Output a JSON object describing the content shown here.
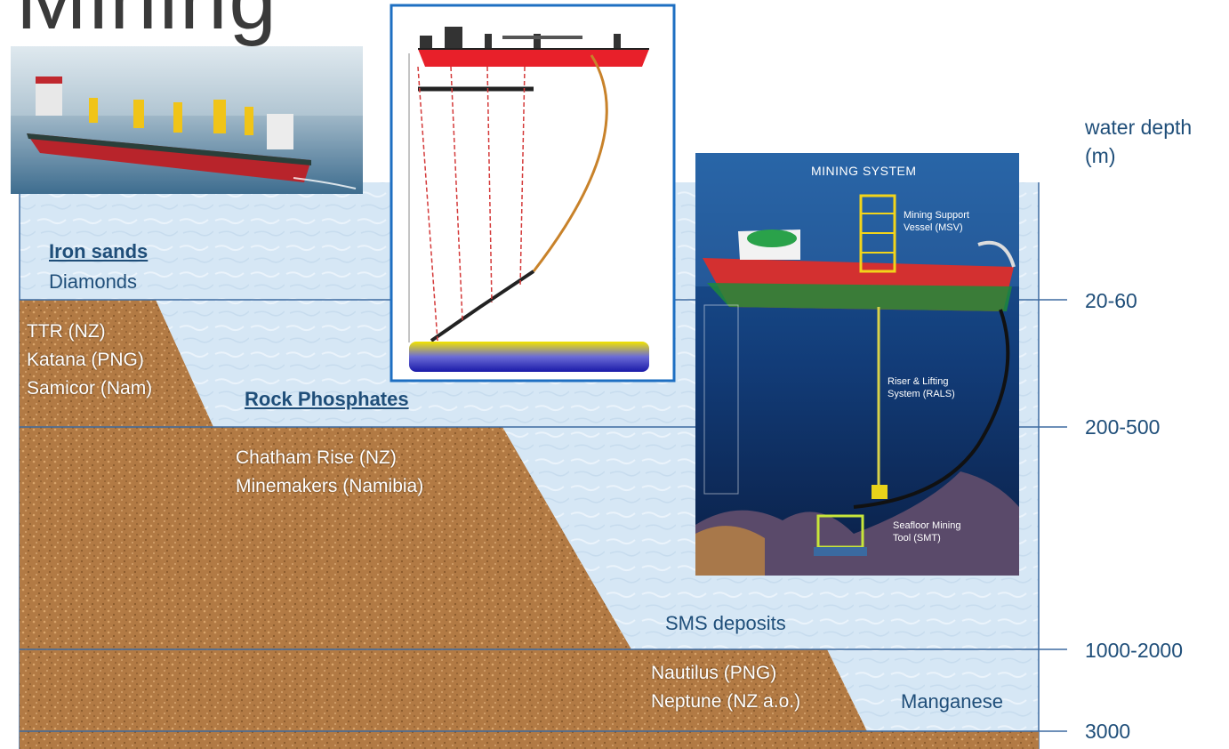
{
  "title": "Mining",
  "depth_axis": {
    "heading_line1": "water depth",
    "heading_line2": "(m)",
    "ticks": [
      "20-60",
      "200-500",
      "1000-2000",
      "3000"
    ]
  },
  "zones": {
    "iron_sands": {
      "heading": "Iron sands",
      "sub": "Diamonds"
    },
    "shallow_projects": [
      "TTR (NZ)",
      "Katana (PNG)",
      "Samicor (Nam)"
    ],
    "rock_phosphates": {
      "heading": "Rock Phosphates"
    },
    "phosphate_projects": [
      "Chatham Rise (NZ)",
      "Minemakers (Namibia)"
    ],
    "sms": {
      "label": "SMS deposits"
    },
    "sms_projects": [
      "Nautilus (PNG)",
      "Neptune (NZ a.o.)"
    ],
    "manganese": {
      "label": "Manganese"
    }
  },
  "mining_system": {
    "title": "MINING SYSTEM",
    "msv_line1": "Mining Support",
    "msv_line2": "Vessel (MSV)",
    "rals_line1": "Riser & Lifting",
    "rals_line2": "System (RALS)",
    "smt_line1": "Seafloor Mining",
    "smt_line2": "Tool (SMT)"
  },
  "colors": {
    "water": "#d6e7f5",
    "sediment": "#b27a44",
    "line": "#3d6aa0",
    "text_blue": "#1f4e79"
  }
}
